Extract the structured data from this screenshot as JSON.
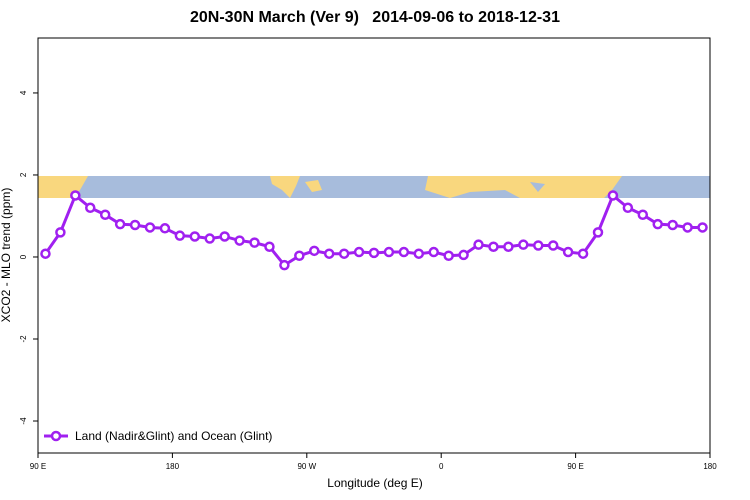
{
  "chart_data": {
    "type": "line",
    "title": "20N-30N March (Ver 9)   2014-09-06 to 2018-12-31",
    "xlabel": "Longitude (deg E)",
    "ylabel": "XCO2 - MLO trend (ppm)",
    "xlim": [
      90,
      540
    ],
    "ylim": [
      -4.78,
      5.34
    ],
    "xticks": [
      {
        "value": 90,
        "label": "90 E"
      },
      180,
      {
        "value": 270,
        "label": "90 W"
      },
      {
        "value": 360,
        "label": "0"
      },
      {
        "value": 450,
        "label": "90 E"
      },
      {
        "value": 540,
        "label": "180"
      }
    ],
    "yticks": [
      -4,
      -2,
      0,
      2,
      4
    ],
    "legend": "bottom-left",
    "x": [
      95,
      105,
      115,
      125,
      135,
      145,
      155,
      165,
      175,
      185,
      195,
      205,
      215,
      225,
      235,
      245,
      255,
      265,
      275,
      285,
      295,
      305,
      315,
      325,
      335,
      345,
      355,
      365,
      375,
      385,
      395,
      405,
      415,
      425,
      435,
      445,
      455,
      465,
      475,
      485,
      495,
      505,
      515,
      525,
      535
    ],
    "series": [
      {
        "name": "Land (Nadir&Glint) and Ocean (Glint)",
        "color": "#a020f0",
        "values": [
          0.08,
          0.6,
          1.5,
          1.2,
          1.03,
          0.8,
          0.78,
          0.72,
          0.7,
          0.52,
          0.5,
          0.45,
          0.5,
          0.4,
          0.35,
          0.25,
          -0.2,
          0.03,
          0.15,
          0.08,
          0.08,
          0.12,
          0.1,
          0.12,
          0.12,
          0.08,
          0.12,
          0.03,
          0.05,
          0.3,
          0.25,
          0.25,
          0.3,
          0.28,
          0.28,
          0.12,
          0.08,
          0.6,
          1.5,
          1.2,
          1.03,
          0.8,
          0.78,
          0.72,
          0.72
        ]
      }
    ]
  }
}
